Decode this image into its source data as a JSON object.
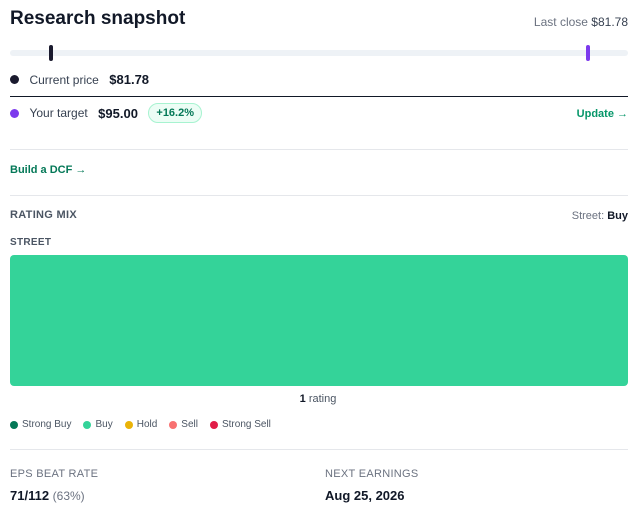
{
  "header": {
    "title": "Research snapshot",
    "last_close_label": "Last close",
    "last_close_value": "$81.78"
  },
  "price_range": {
    "current_position_pct": 6.7,
    "target_position_pct": 93.5
  },
  "current": {
    "label": "Current price",
    "value": "$81.78",
    "color": "#1a1a2e"
  },
  "target": {
    "label": "Your target",
    "value": "$95.00",
    "upside": "+16.2%",
    "update_label": "Update →",
    "color": "#7c3aed"
  },
  "dcf": {
    "label": "Build a DCF →"
  },
  "rating_mix": {
    "title": "RATING MIX",
    "street_label": "Street:",
    "street_value": "Buy",
    "subtitle": "STREET",
    "count": "1",
    "count_suffix": "rating",
    "segments": [
      {
        "name": "Strong Buy",
        "count": 0,
        "color": "#047857"
      },
      {
        "name": "Buy",
        "count": 1,
        "color": "#34d399"
      },
      {
        "name": "Hold",
        "count": 0,
        "color": "#eab308"
      },
      {
        "name": "Sell",
        "count": 0,
        "color": "#f87171"
      },
      {
        "name": "Strong Sell",
        "count": 0,
        "color": "#e11d48"
      }
    ]
  },
  "stats": {
    "eps_beat": {
      "label": "EPS BEAT RATE",
      "value": "71/112",
      "pct": "(63%)"
    },
    "next_earnings": {
      "label": "NEXT EARNINGS",
      "value": "Aug 25, 2026"
    }
  }
}
